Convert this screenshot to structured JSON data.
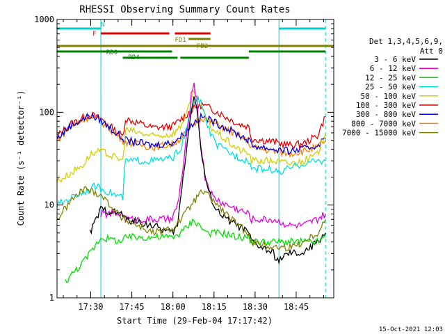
{
  "chart_data": {
    "type": "line",
    "title": "RHESSI Observing Summary Count Rates",
    "xlabel": "Start Time (29-Feb-04 17:17:42)",
    "ylabel": "Count Rate (s⁻¹ detector⁻¹)",
    "yscale": "log",
    "ylim": [
      1,
      1000
    ],
    "xlim_min": [
      0,
      101
    ],
    "x_unit": "minutes after 17:17:42",
    "x_ticks": [
      {
        "t": 12.3,
        "label": "17:30"
      },
      {
        "t": 27.3,
        "label": "17:45"
      },
      {
        "t": 42.3,
        "label": "18:00"
      },
      {
        "t": 57.3,
        "label": "18:15"
      },
      {
        "t": 72.3,
        "label": "18:30"
      },
      {
        "t": 87.3,
        "label": "18:45"
      }
    ],
    "y_ticks": [
      {
        "v": 1,
        "label": "1"
      },
      {
        "v": 10,
        "label": "10"
      },
      {
        "v": 100,
        "label": "100"
      },
      {
        "v": 1000,
        "label": "1000"
      }
    ],
    "timestamp": "15-Oct-2021 12:03",
    "legend": {
      "placement": "right",
      "header1": "Det 1,3,4,5,6,9,",
      "header2": "Att 0",
      "entries": [
        {
          "label": "3 - 6 keV",
          "color": "#000000"
        },
        {
          "label": "6 - 12 keV",
          "color": "#e000e0"
        },
        {
          "label": "12 - 25 keV",
          "color": "#00e000"
        },
        {
          "label": "25 - 50 keV",
          "color": "#00e0e0"
        },
        {
          "label": "50 - 100 keV",
          "color": "#d0d000"
        },
        {
          "label": "100 - 300 keV",
          "color": "#e00000"
        },
        {
          "label": "300 - 800 keV",
          "color": "#0000e0"
        },
        {
          "label": "800 - 7000 keV",
          "color": "#ff8000"
        },
        {
          "label": "7000 - 15000 keV",
          "color": "#808000"
        }
      ]
    },
    "flag_bars": [
      {
        "label": "N",
        "color": "#00d0d0",
        "segments": [
          [
            0,
            16
          ],
          [
            81,
            98
          ]
        ]
      },
      {
        "label": "F",
        "color": "#e00000",
        "segments": [
          [
            16,
            41
          ],
          [
            43,
            56
          ]
        ]
      },
      {
        "label": "FD1",
        "color": "#808000",
        "segments": [
          [
            48,
            56
          ]
        ]
      },
      {
        "label": "FD2",
        "color": "#808000",
        "segments": [
          [
            0,
            101
          ]
        ]
      },
      {
        "label": "RD0",
        "color": "#008000",
        "segments": [
          [
            0,
            42
          ],
          [
            70,
            98
          ]
        ]
      },
      {
        "label": "RD4",
        "color": "#008000",
        "segments": [
          [
            24,
            44
          ],
          [
            45,
            70
          ]
        ]
      }
    ],
    "night_boundaries": [
      16,
      81
    ],
    "dashed_boundaries": [
      16,
      98
    ],
    "series": [
      {
        "name": "100 - 300 keV",
        "color": "#e00000",
        "x": [
          0,
          5,
          12,
          16,
          24,
          25,
          35,
          42,
          46,
          50,
          53,
          56,
          60,
          66,
          70,
          71,
          79,
          85,
          90,
          95,
          98
        ],
        "values": [
          55,
          75,
          95,
          85,
          55,
          85,
          68,
          70,
          88,
          110,
          120,
          110,
          95,
          75,
          70,
          52,
          48,
          44,
          46,
          56,
          90
        ]
      },
      {
        "name": "800 - 7000 keV",
        "color": "#ff8000",
        "x": [
          0,
          5,
          12,
          16,
          24,
          25,
          35,
          42,
          46,
          50,
          53,
          56,
          60,
          66,
          70,
          71,
          79,
          85,
          90,
          95,
          98
        ],
        "values": [
          50,
          70,
          90,
          80,
          50,
          48,
          42,
          45,
          55,
          75,
          88,
          80,
          70,
          56,
          48,
          42,
          38,
          36,
          38,
          42,
          50
        ]
      },
      {
        "name": "300 - 800 keV",
        "color": "#0000e0",
        "x": [
          0,
          5,
          12,
          16,
          24,
          25,
          35,
          42,
          46,
          50,
          53,
          56,
          60,
          66,
          70,
          71,
          79,
          85,
          90,
          95,
          98
        ],
        "values": [
          52,
          72,
          92,
          82,
          52,
          50,
          44,
          47,
          57,
          78,
          90,
          82,
          72,
          58,
          50,
          44,
          40,
          38,
          40,
          44,
          52
        ]
      },
      {
        "name": "50 - 100 keV",
        "color": "#d0d000",
        "x": [
          0,
          5,
          10,
          12,
          16,
          24,
          25,
          35,
          42,
          45,
          48,
          50,
          52,
          54,
          56,
          60,
          66,
          70,
          71,
          79,
          85,
          90,
          95,
          98
        ],
        "values": [
          18,
          22,
          28,
          35,
          38,
          30,
          65,
          55,
          58,
          70,
          110,
          160,
          130,
          90,
          70,
          55,
          40,
          36,
          30,
          30,
          28,
          30,
          35,
          60
        ]
      },
      {
        "name": "25 - 50 keV",
        "color": "#00e0e0",
        "x": [
          0,
          5,
          10,
          14,
          16,
          24,
          25,
          35,
          42,
          45,
          47,
          49,
          51,
          53,
          55,
          58,
          62,
          66,
          70,
          71,
          79,
          81,
          85,
          90,
          95,
          98
        ],
        "values": [
          10,
          12,
          14,
          16,
          15,
          12,
          30,
          30,
          32,
          40,
          60,
          110,
          140,
          120,
          70,
          45,
          38,
          33,
          30,
          25,
          24,
          22,
          25,
          28,
          30,
          30
        ]
      },
      {
        "name": "6 - 12 keV",
        "color": "#e000e0",
        "x": [
          16,
          24,
          25,
          35,
          42,
          44,
          46,
          48,
          49,
          50,
          51,
          52,
          54,
          57,
          62,
          66,
          70,
          71,
          79,
          85,
          90,
          95,
          98
        ],
        "values": [
          8,
          8,
          7,
          7,
          7,
          10,
          25,
          80,
          150,
          190,
          140,
          60,
          20,
          12,
          10,
          9,
          8,
          7,
          7,
          6,
          6,
          7,
          8
        ]
      },
      {
        "name": "3 - 6 keV",
        "color": "#000000",
        "x": [
          12,
          16,
          24,
          25,
          35,
          42,
          44,
          46,
          48,
          49,
          50,
          51,
          52,
          53,
          55,
          58,
          62,
          66,
          70,
          71,
          79,
          80,
          85,
          90,
          95,
          98
        ],
        "values": [
          5,
          9,
          8,
          7,
          6,
          5,
          6,
          20,
          60,
          110,
          150,
          110,
          60,
          30,
          15,
          9,
          7,
          6,
          5,
          4,
          3,
          2.5,
          3,
          3,
          4,
          5
        ]
      },
      {
        "name": "12 - 25 keV",
        "color": "#00e000",
        "x": [
          3,
          10,
          16,
          24,
          25,
          35,
          42,
          45,
          48,
          50,
          52,
          55,
          60,
          66,
          70,
          71,
          79,
          85,
          90,
          95,
          98
        ],
        "values": [
          1.5,
          2.5,
          4.5,
          4,
          4.5,
          4.5,
          4.5,
          5,
          6,
          7,
          6,
          5,
          5,
          4.5,
          4.5,
          4,
          4,
          4,
          4,
          4,
          4.5
        ]
      },
      {
        "name": "7000 - 15000 keV",
        "color": "#808000",
        "x": [
          0,
          5,
          10,
          16,
          24,
          25,
          35,
          42,
          46,
          50,
          53,
          56,
          60,
          66,
          70,
          71,
          79,
          85,
          90,
          95,
          98
        ],
        "values": [
          7,
          11,
          15,
          13,
          7,
          7,
          5,
          5.5,
          7.5,
          11,
          14,
          12,
          9,
          6,
          5,
          4,
          3.5,
          3.5,
          4,
          5,
          7
        ]
      }
    ]
  }
}
